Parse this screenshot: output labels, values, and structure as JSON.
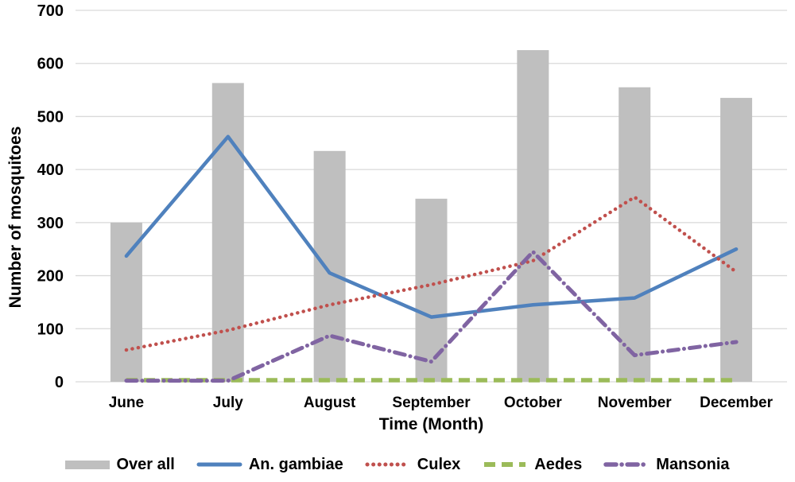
{
  "chart_data": {
    "type": "combo-bar-line",
    "categories": [
      "June",
      "July",
      "August",
      "September",
      "October",
      "November",
      "December"
    ],
    "series": [
      {
        "name": "Over all",
        "kind": "bar",
        "style": "solid",
        "color": "#BFBFBF",
        "values": [
          300,
          563,
          435,
          345,
          625,
          555,
          535
        ]
      },
      {
        "name": "An. gambiae",
        "kind": "line",
        "style": "solid",
        "color": "#4F81BD",
        "values": [
          237,
          462,
          205,
          122,
          145,
          158,
          250
        ]
      },
      {
        "name": "Culex",
        "kind": "line",
        "style": "dotted",
        "color": "#C0504D",
        "values": [
          60,
          97,
          145,
          183,
          228,
          348,
          207
        ]
      },
      {
        "name": "Aedes",
        "kind": "line",
        "style": "dashed",
        "color": "#9BBB59",
        "values": [
          3,
          3,
          3,
          3,
          3,
          3,
          3
        ]
      },
      {
        "name": "Mansonia",
        "kind": "line",
        "style": "dashdot",
        "color": "#8064A2",
        "values": [
          2,
          2,
          87,
          38,
          245,
          50,
          75
        ]
      }
    ],
    "title": "",
    "xlabel": "Time (Month)",
    "ylabel": "Number of mosquitoes",
    "ylim": [
      0,
      700
    ],
    "ytick_step": 100,
    "y_ticks": [
      0,
      100,
      200,
      300,
      400,
      500,
      600,
      700
    ],
    "grid": true,
    "legend_position": "bottom"
  },
  "colors": {
    "gridline": "#D9D9D9",
    "text": "#000000",
    "background": "#FFFFFF"
  }
}
